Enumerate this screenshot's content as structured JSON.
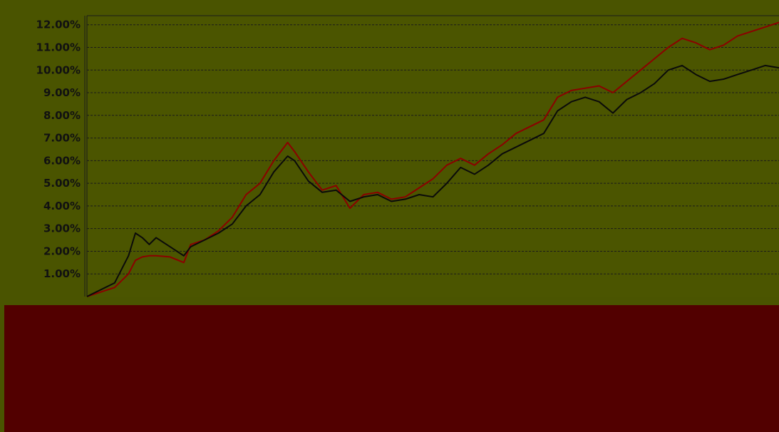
{
  "colors": {
    "background": "#4a5400",
    "plot_background": "#4b5500",
    "lower_band": "#520000",
    "grid": "#1a1a1a",
    "text": "#111111"
  },
  "chart_data": {
    "type": "line",
    "title": "",
    "xlabel": "",
    "ylabel": "",
    "ylim": [
      0,
      12.4
    ],
    "yticks": [
      1,
      2,
      3,
      4,
      5,
      6,
      7,
      8,
      9,
      10,
      11,
      12
    ],
    "ytick_labels": [
      "1.00%",
      "2.00%",
      "3.00%",
      "4.00%",
      "5.00%",
      "6.00%",
      "7.00%",
      "8.00%",
      "9.00%",
      "10.00%",
      "11.00%",
      "12.00%"
    ],
    "grid": true,
    "legend": "none",
    "x": [
      0,
      4,
      6,
      7,
      8,
      9,
      10,
      12,
      14,
      15,
      17,
      19,
      21,
      23,
      25,
      27,
      29,
      30,
      32,
      34,
      36,
      38,
      40,
      42,
      44,
      46,
      48,
      50,
      52,
      54,
      56,
      58,
      60,
      62,
      64,
      66,
      68,
      70,
      72,
      74,
      76,
      78,
      80,
      82,
      84,
      86,
      88,
      90,
      92,
      94,
      96,
      98,
      100
    ],
    "series": [
      {
        "color": "#8b0000",
        "values": [
          0,
          0.4,
          1.0,
          1.6,
          1.75,
          1.8,
          1.8,
          1.75,
          1.5,
          2.3,
          2.5,
          2.9,
          3.5,
          4.5,
          5.0,
          6.0,
          6.8,
          6.4,
          5.5,
          4.7,
          4.9,
          3.9,
          4.5,
          4.6,
          4.3,
          4.4,
          4.8,
          5.2,
          5.8,
          6.1,
          5.8,
          6.3,
          6.7,
          7.2,
          7.5,
          7.8,
          8.8,
          9.1,
          9.2,
          9.3,
          9.0,
          9.5,
          10.0,
          10.5,
          11.0,
          11.4,
          11.2,
          10.9,
          11.1,
          11.5,
          11.7,
          11.9,
          12.1
        ]
      },
      {
        "color": "#0a0a0a",
        "values": [
          0,
          0.6,
          1.8,
          2.8,
          2.6,
          2.3,
          2.6,
          2.2,
          1.8,
          2.2,
          2.5,
          2.8,
          3.2,
          4.0,
          4.5,
          5.5,
          6.2,
          6.0,
          5.1,
          4.6,
          4.7,
          4.2,
          4.4,
          4.5,
          4.2,
          4.3,
          4.5,
          4.4,
          5.0,
          5.7,
          5.4,
          5.8,
          6.3,
          6.6,
          6.9,
          7.2,
          8.2,
          8.6,
          8.8,
          8.6,
          8.1,
          8.7,
          9.0,
          9.4,
          10.0,
          10.2,
          9.8,
          9.5,
          9.6,
          9.8,
          10.0,
          10.2,
          10.1
        ]
      }
    ]
  }
}
